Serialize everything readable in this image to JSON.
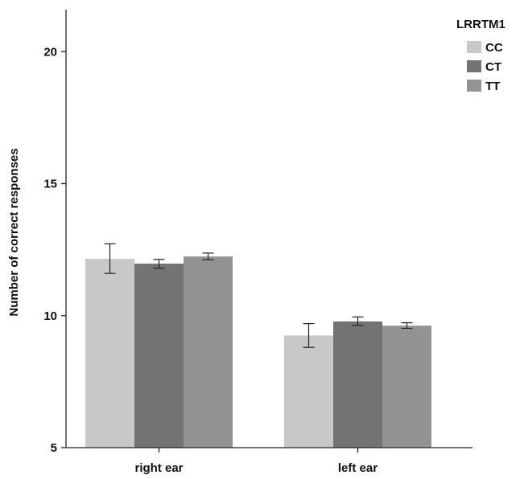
{
  "chart_data": {
    "type": "bar",
    "title": "",
    "xlabel": "",
    "ylabel": "Number of correct responses",
    "categories": [
      "right ear",
      "left ear"
    ],
    "yticks": [
      "5",
      "10",
      "15",
      "20"
    ],
    "ylim": [
      5,
      21.7
    ],
    "grid": false,
    "legend_title": "LRRTM1",
    "legend_position": "top-right",
    "series": [
      {
        "name": "CC",
        "color": "#c8c8c8",
        "values": [
          12.15,
          9.25
        ],
        "error_low": [
          11.6,
          8.8
        ],
        "error_high": [
          12.72,
          9.7
        ]
      },
      {
        "name": "CT",
        "color": "#737373",
        "values": [
          11.97,
          9.78
        ],
        "error_low": [
          11.8,
          9.63
        ],
        "error_high": [
          12.13,
          9.95
        ]
      },
      {
        "name": "TT",
        "color": "#939393",
        "values": [
          12.24,
          9.62
        ],
        "error_low": [
          12.12,
          9.52
        ],
        "error_high": [
          12.37,
          9.73
        ]
      }
    ]
  }
}
